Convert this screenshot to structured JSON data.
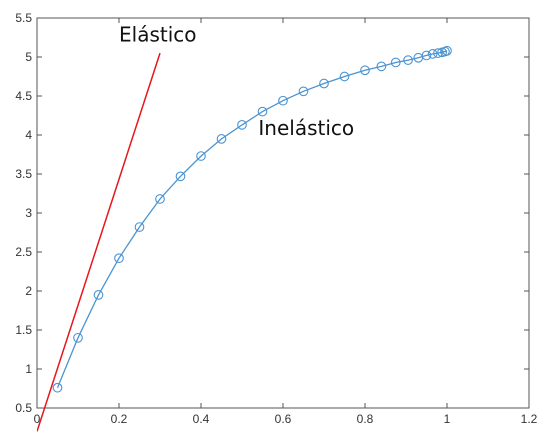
{
  "chart_data": {
    "type": "line",
    "title": "",
    "xlabel": "",
    "ylabel": "",
    "xlim": [
      0,
      1.2
    ],
    "ylim": [
      0.5,
      5.5
    ],
    "x_ticks": [
      0,
      0.2,
      0.4,
      0.6,
      0.8,
      1,
      1.2
    ],
    "x_tick_labels": [
      "0",
      "0.2",
      "0.4",
      "0.6",
      "0.8",
      "1",
      "1.2"
    ],
    "y_ticks": [
      0.5,
      1,
      1.5,
      2,
      2.5,
      3,
      3.5,
      4,
      4.5,
      5,
      5.5
    ],
    "y_tick_labels": [
      "0.5",
      "1",
      "1.5",
      "2",
      "2.5",
      "3",
      "3.5",
      "4",
      "4.5",
      "5",
      "5.5"
    ],
    "grid": false,
    "colors": {
      "inelastic_series": "#4a93d2",
      "elastic_line": "#e8161b",
      "axes": "#555555"
    },
    "series": [
      {
        "id": "inelastic",
        "style": "line-with-circle-markers",
        "x": [
          0.05,
          0.1,
          0.15,
          0.2,
          0.25,
          0.3,
          0.35,
          0.4,
          0.45,
          0.5,
          0.55,
          0.6,
          0.65,
          0.7,
          0.75,
          0.8,
          0.84,
          0.875,
          0.905,
          0.93,
          0.95,
          0.965,
          0.978,
          0.988,
          0.995,
          1.0
        ],
        "y": [
          0.76,
          1.4,
          1.95,
          2.42,
          2.82,
          3.18,
          3.47,
          3.73,
          3.95,
          4.13,
          4.3,
          4.44,
          4.56,
          4.66,
          4.75,
          4.83,
          4.88,
          4.93,
          4.96,
          4.99,
          5.02,
          5.04,
          5.05,
          5.06,
          5.07,
          5.08
        ]
      },
      {
        "id": "elastic",
        "style": "line",
        "x": [
          0.0,
          0.3
        ],
        "y": [
          0.2,
          5.05
        ]
      }
    ],
    "annotations": [
      {
        "id": "elastic",
        "text": "Elástico",
        "x": 0.2,
        "y": 5.2
      },
      {
        "id": "inelastic",
        "text": "Inelástico",
        "x": 0.54,
        "y": 4.0
      }
    ]
  }
}
